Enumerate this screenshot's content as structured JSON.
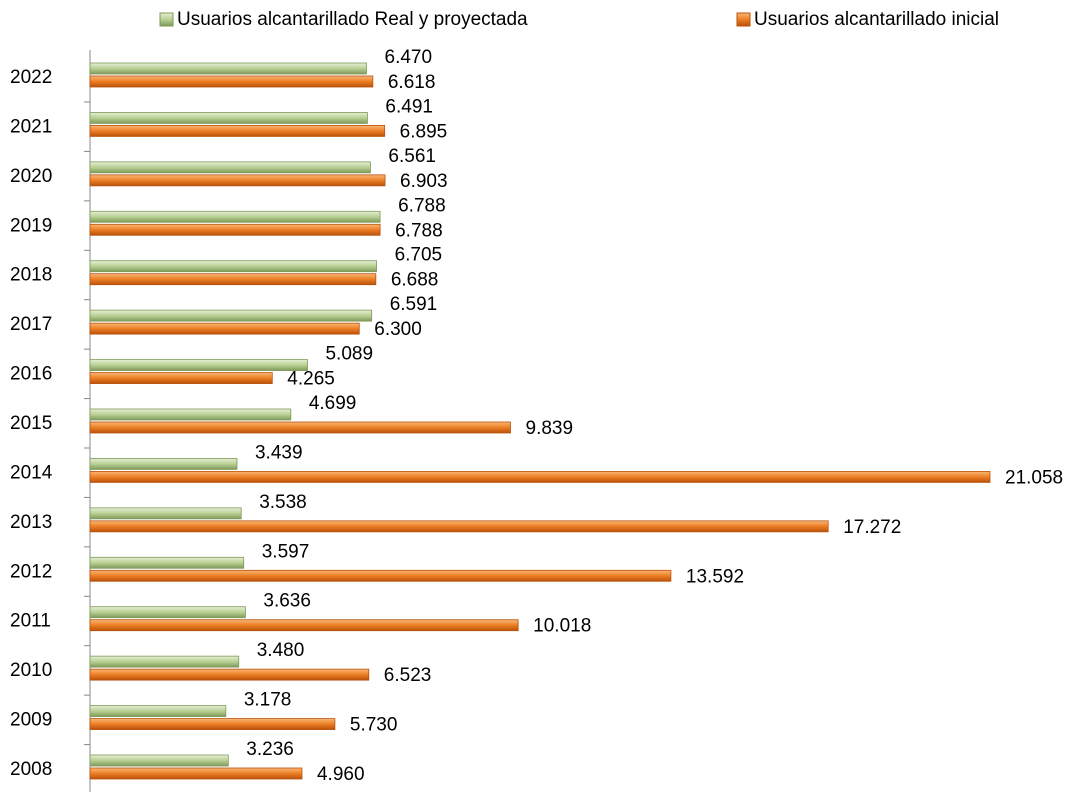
{
  "chart_data": {
    "type": "barh",
    "categories": [
      "2008",
      "2009",
      "2010",
      "2011",
      "2012",
      "2013",
      "2014",
      "2015",
      "2016",
      "2017",
      "2018",
      "2019",
      "2020",
      "2021",
      "2022"
    ],
    "series": [
      {
        "name": "Usuarios  alcantarillado Real y proyectada",
        "color": "#a9c47f",
        "values": [
          3236,
          3178,
          3480,
          3636,
          3597,
          3538,
          3439,
          4699,
          5089,
          6591,
          6705,
          6788,
          6561,
          6491,
          6470
        ],
        "value_labels": [
          "3.236",
          "3.178",
          "3.480",
          "3.636",
          "3.597",
          "3.538",
          "3.439",
          "4.699",
          "5.089",
          "6.591",
          "6.705",
          "6.788",
          "6.561",
          "6.491",
          "6.470"
        ]
      },
      {
        "name": "Usuarios alcantarillado inicial",
        "color": "#e8761e",
        "values": [
          4960,
          5730,
          6523,
          10018,
          13592,
          17272,
          21058,
          9839,
          4265,
          6300,
          6688,
          6788,
          6903,
          6895,
          6618
        ],
        "value_labels": [
          "4.960",
          "5.730",
          "6.523",
          "10.018",
          "13.592",
          "17.272",
          "21.058",
          "9.839",
          "4.265",
          "6.300",
          "6.688",
          "6.788",
          "6.903",
          "6.895",
          "6.618"
        ]
      }
    ],
    "xlim": [
      0,
      21058
    ],
    "legend": "top"
  }
}
